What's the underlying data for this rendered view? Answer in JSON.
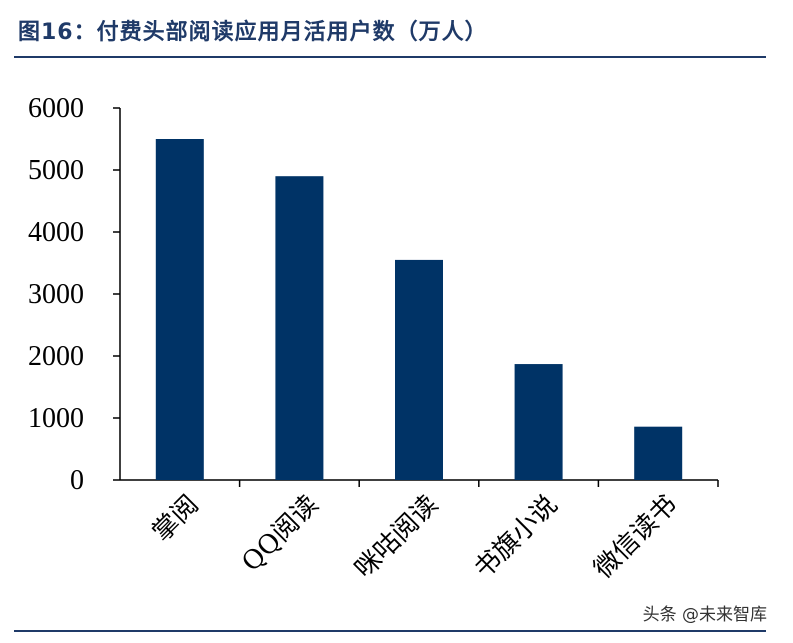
{
  "header": {
    "title": "图16：付费头部阅读应用月活用户数（万人）"
  },
  "watermark": "头条 @未来智库",
  "chart_data": {
    "type": "bar",
    "title": "图16：付费头部阅读应用月活用户数（万人）",
    "categories": [
      "掌阅",
      "QQ阅读",
      "咪咕阅读",
      "书旗小说",
      "微信读书"
    ],
    "values": [
      5500,
      4900,
      3550,
      1870,
      860
    ],
    "ylim": [
      0,
      6000
    ],
    "yticks": [
      0,
      1000,
      2000,
      3000,
      4000,
      5000,
      6000
    ],
    "bar_color": "#003366",
    "grid": false,
    "xlabel": "",
    "ylabel": ""
  }
}
